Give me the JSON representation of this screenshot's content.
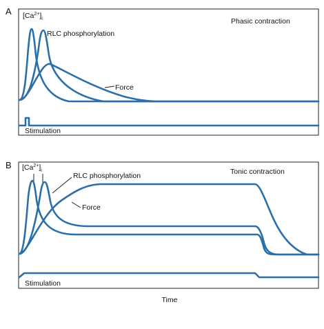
{
  "colors": {
    "trace": "#2c6fa8",
    "frame": "#222222",
    "text": "#111111"
  },
  "panel_a": {
    "letter": "A",
    "title": "Phasic contraction",
    "ca_label": {
      "main": "[Ca",
      "superscript": "2+",
      "close": "]",
      "subscript": "i"
    },
    "rlc_label": "RLC phosphorylation",
    "force_label": "Force",
    "stimulation_label": "Stimulation"
  },
  "panel_b": {
    "letter": "B",
    "title": "Tonic contraction",
    "ca_label": {
      "main": "[Ca",
      "superscript": "2+",
      "close": "]",
      "subscript": "i"
    },
    "rlc_label": "RLC phosphorylation",
    "force_label": "Force",
    "stimulation_label": "Stimulation"
  },
  "x_axis_label": "Time"
}
